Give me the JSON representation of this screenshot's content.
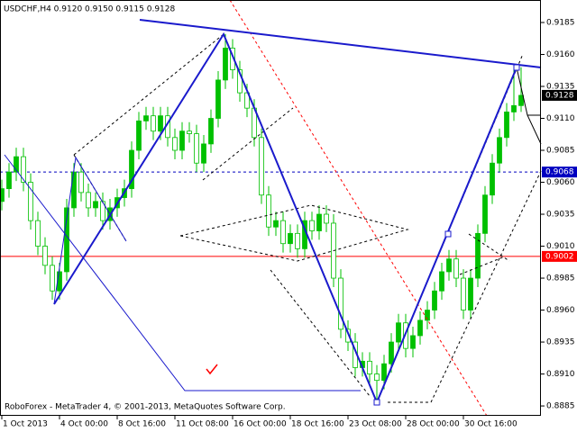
{
  "chart_data": {
    "type": "candlestick",
    "title": "USDCHF,H4  0.9120 0.9150 0.9115 0.9128",
    "footer": "RoboForex - MetaTrader 4, © 2001-2013, MetaQuotes Software Corp.",
    "categories": [
      "1 Oct 2013",
      null,
      null,
      null,
      null,
      null,
      null,
      null,
      "4 Oct 00:00",
      null,
      null,
      null,
      null,
      null,
      null,
      null,
      "8 Oct 16:00",
      null,
      null,
      null,
      null,
      null,
      null,
      null,
      "11 Oct 08:00",
      null,
      null,
      null,
      null,
      null,
      null,
      null,
      "16 Oct 00:00",
      null,
      null,
      null,
      null,
      null,
      null,
      null,
      "18 Oct 16:00",
      null,
      null,
      null,
      null,
      null,
      null,
      null,
      "23 Oct 08:00",
      null,
      null,
      null,
      null,
      null,
      null,
      null,
      "28 Oct 00:00",
      null,
      null,
      null,
      null,
      null,
      null,
      null,
      "30 Oct 16:00",
      null,
      null,
      null,
      null,
      null,
      null,
      null,
      null
    ],
    "open": [
      0.9045,
      0.9055,
      0.9068,
      0.908,
      0.906,
      0.903,
      0.901,
      0.8995,
      0.8975,
      0.899,
      0.904,
      0.9068,
      0.9052,
      0.904,
      0.9045,
      0.903,
      0.904,
      0.9048,
      0.9055,
      0.9085,
      0.9108,
      0.9112,
      0.91,
      0.9112,
      0.9095,
      0.9085,
      0.91,
      0.9098,
      0.9075,
      0.909,
      0.911,
      0.914,
      0.9165,
      0.9148,
      0.913,
      0.9118,
      0.9095,
      0.905,
      0.9025,
      0.903,
      0.9012,
      0.902,
      0.9008,
      0.903,
      0.9022,
      0.9035,
      0.9028,
      0.8985,
      0.8945,
      0.8935,
      0.8915,
      0.892,
      0.891,
      0.8905,
      0.8918,
      0.8935,
      0.895,
      0.893,
      0.894,
      0.8952,
      0.896,
      0.8975,
      0.899,
      0.9,
      0.8985,
      0.896,
      0.8985,
      0.902,
      0.905,
      0.9075,
      0.9095,
      0.9115,
      0.912
    ],
    "high": [
      0.9062,
      0.9075,
      0.9087,
      0.9087,
      0.9067,
      0.9037,
      0.9017,
      0.9002,
      0.8997,
      0.9047,
      0.9075,
      0.9075,
      0.9059,
      0.9052,
      0.9052,
      0.9047,
      0.9055,
      0.9062,
      0.9092,
      0.9115,
      0.9119,
      0.9119,
      0.9119,
      0.9119,
      0.9102,
      0.9107,
      0.9107,
      0.9105,
      0.9097,
      0.9117,
      0.9147,
      0.9176,
      0.9172,
      0.9155,
      0.9137,
      0.9125,
      0.9102,
      0.9057,
      0.9037,
      0.9037,
      0.9027,
      0.9027,
      0.9037,
      0.9037,
      0.9042,
      0.9042,
      0.9035,
      0.8992,
      0.8952,
      0.8942,
      0.8927,
      0.8927,
      0.8917,
      0.8925,
      0.8942,
      0.8957,
      0.8957,
      0.8947,
      0.8959,
      0.8967,
      0.8982,
      0.8997,
      0.9007,
      0.9007,
      0.8992,
      0.8992,
      0.9027,
      0.9057,
      0.9082,
      0.9102,
      0.9122,
      0.9152,
      0.915
    ],
    "low": [
      0.9038,
      0.9048,
      0.9061,
      0.9053,
      0.9023,
      0.9003,
      0.8988,
      0.8968,
      0.8968,
      0.8983,
      0.9033,
      0.9045,
      0.9033,
      0.9033,
      0.9023,
      0.9023,
      0.9033,
      0.9041,
      0.9048,
      0.9078,
      0.9101,
      0.9093,
      0.9093,
      0.9088,
      0.9078,
      0.9078,
      0.9091,
      0.9068,
      0.9068,
      0.9083,
      0.9103,
      0.9133,
      0.9141,
      0.9123,
      0.9111,
      0.9088,
      0.9043,
      0.9018,
      0.9018,
      0.9005,
      0.9005,
      0.9001,
      0.9001,
      0.9015,
      0.9015,
      0.9021,
      0.8978,
      0.8938,
      0.8928,
      0.8908,
      0.8908,
      0.8903,
      0.8887,
      0.8898,
      0.8911,
      0.8928,
      0.8923,
      0.8923,
      0.8933,
      0.8945,
      0.8953,
      0.8968,
      0.8983,
      0.8978,
      0.8953,
      0.8953,
      0.8978,
      0.9013,
      0.9043,
      0.9068,
      0.9088,
      0.9108,
      0.9115
    ],
    "close": [
      0.9055,
      0.9068,
      0.908,
      0.906,
      0.903,
      0.901,
      0.8995,
      0.8975,
      0.899,
      0.904,
      0.9068,
      0.9052,
      0.904,
      0.9045,
      0.903,
      0.904,
      0.9048,
      0.9055,
      0.9085,
      0.9108,
      0.9112,
      0.91,
      0.9112,
      0.9095,
      0.9085,
      0.91,
      0.9098,
      0.9075,
      0.909,
      0.911,
      0.914,
      0.9165,
      0.9148,
      0.913,
      0.9118,
      0.9095,
      0.905,
      0.9025,
      0.903,
      0.9012,
      0.902,
      0.9008,
      0.903,
      0.9022,
      0.9035,
      0.9028,
      0.8985,
      0.8945,
      0.8935,
      0.8915,
      0.892,
      0.891,
      0.8905,
      0.8918,
      0.8935,
      0.895,
      0.893,
      0.894,
      0.8952,
      0.896,
      0.8975,
      0.899,
      0.9,
      0.8985,
      0.896,
      0.8985,
      0.902,
      0.905,
      0.9075,
      0.9095,
      0.9115,
      0.912,
      0.9128
    ],
    "up_color": "#00c000",
    "down_color": "#ffffff",
    "wick_color": "#00c000",
    "ylim": [
      0.88773,
      0.92026
    ],
    "yticks": [
      0.9185,
      {
        "value": 0.916,
        "label": "0.9160"
      },
      0.9135,
      {
        "value": 0.911,
        "label": "0.9110"
      },
      0.9085,
      {
        "value": 0.906,
        "label": "0.9060"
      },
      0.9035,
      {
        "value": 0.901,
        "label": "0.9010"
      },
      0.8985,
      {
        "value": 0.896,
        "label": "0.8960"
      },
      0.8935,
      {
        "value": 0.891,
        "label": "0.8910"
      },
      0.8885
    ],
    "levels": [
      {
        "value": 0.9068,
        "color": "#0000c0",
        "style": "dashed"
      },
      {
        "value": 0.9002,
        "color": "#ff0000",
        "style": "solid"
      }
    ],
    "current_price": 0.9128
  }
}
